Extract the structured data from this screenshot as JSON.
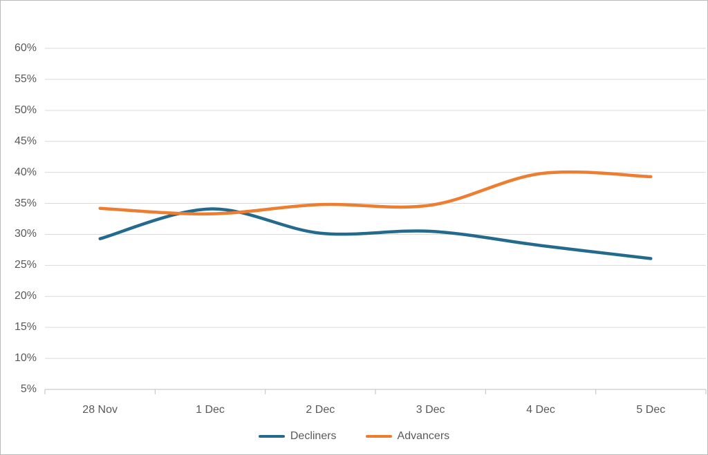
{
  "chart_data": {
    "type": "line",
    "smooth": true,
    "categories": [
      "28 Nov",
      "1 Dec",
      "2 Dec",
      "3 Dec",
      "4 Dec",
      "5 Dec"
    ],
    "series": [
      {
        "name": "Decliners",
        "color": "#246A8C",
        "values": [
          29.3,
          34.1,
          30.2,
          30.5,
          28.2,
          26.1
        ]
      },
      {
        "name": "Advancers",
        "color": "#ED7D31",
        "values": [
          34.2,
          33.3,
          34.8,
          34.7,
          39.8,
          39.3
        ]
      }
    ],
    "title": "",
    "xlabel": "",
    "ylabel": "",
    "ylim": [
      5,
      60
    ],
    "y_tick_step": 5,
    "y_tick_labels": [
      "5%",
      "10%",
      "15%",
      "20%",
      "25%",
      "30%",
      "35%",
      "40%",
      "45%",
      "50%",
      "55%",
      "60%"
    ],
    "grid": true,
    "legend_position": "bottom-center"
  },
  "styles": {
    "grid_color": "#D9D9D9",
    "axis_line_color": "#BFBFBF",
    "tick_color": "#BFBFBF",
    "text_color": "#595959",
    "background": "#FFFFFF",
    "border_color": "#B9B9B9"
  }
}
